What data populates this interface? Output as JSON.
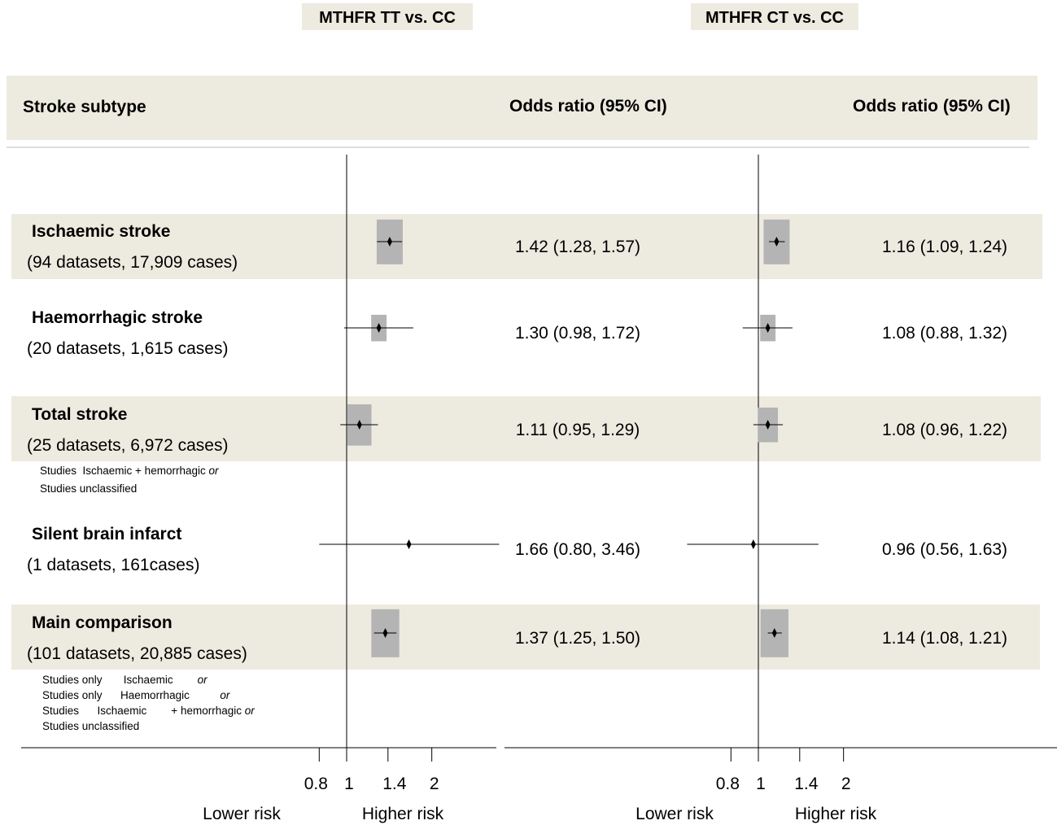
{
  "colors": {
    "band": "#edeae0",
    "box": "#b4b4b4",
    "line": "#000000"
  },
  "headers": {
    "panel_titles": [
      "MTHFR TT vs. CC",
      "MTHFR CT vs. CC"
    ],
    "subtype_label": "Stroke subtype",
    "or_label_left": "Odds ratio (95% CI)",
    "or_label_right": "Odds ratio (95% CI)"
  },
  "rows": [
    {
      "name": "Ischaemic stroke",
      "detail": "(94 datasets, 17,909 cases)",
      "shaded": true,
      "notes": []
    },
    {
      "name": "Haemorrhagic stroke",
      "detail": "(20 datasets, 1,615 cases)",
      "shaded": false,
      "notes": []
    },
    {
      "name": "Total stroke",
      "detail": "(25 datasets, 6,972 cases)",
      "shaded": true,
      "notes": [
        [
          {
            "t": "Studies  Ischaemic + hemorrhagic "
          },
          {
            "t": "or",
            "i": true
          }
        ],
        [
          {
            "t": "Studies unclassified"
          }
        ]
      ]
    },
    {
      "name": "Silent brain infarct",
      "detail": "(1 datasets, 161cases)",
      "shaded": false,
      "notes": []
    },
    {
      "name": "Main comparison",
      "detail": "(101 datasets, 20,885 cases)",
      "shaded": true,
      "notes": [
        [
          {
            "t": "Studies only       Ischaemic        "
          },
          {
            "t": "or",
            "i": true
          }
        ],
        [
          {
            "t": "Studies only      Haemorrhagic          "
          },
          {
            "t": "or",
            "i": true
          }
        ],
        [
          {
            "t": "Studies      Ischaemic        + hemorrhagic "
          },
          {
            "t": "or",
            "i": true
          }
        ],
        [
          {
            "t": "Studies unclassified"
          }
        ]
      ]
    }
  ],
  "chart_data": [
    {
      "type": "forest",
      "title": "MTHFR TT vs. CC",
      "x_scale": "log",
      "reference_line": 1,
      "xticks": [
        0.8,
        1,
        1.4,
        2
      ],
      "xtick_labels": [
        "0.8",
        "1",
        "1.4",
        "2"
      ],
      "xlim": [
        0.55,
        7
      ],
      "direction_labels": [
        "Lower risk",
        "Higher risk"
      ],
      "rows": [
        {
          "label": "Ischaemic stroke",
          "or": 1.42,
          "lo": 1.28,
          "hi": 1.57,
          "text": "1.42 (1.28, 1.57)",
          "weight": 1.0
        },
        {
          "label": "Haemorrhagic stroke",
          "or": 1.3,
          "lo": 0.98,
          "hi": 1.72,
          "text": "1.30 (0.98, 1.72)",
          "weight": 0.35
        },
        {
          "label": "Total stroke",
          "or": 1.11,
          "lo": 0.95,
          "hi": 1.29,
          "text": "1.11 (0.95, 1.29)",
          "weight": 0.85
        },
        {
          "label": "Silent brain infarct",
          "or": 1.66,
          "lo": 0.8,
          "hi": 3.46,
          "text": "1.66 (0.80, 3.46)",
          "weight": 0.0
        },
        {
          "label": "Main comparison",
          "or": 1.37,
          "lo": 1.25,
          "hi": 1.5,
          "text": "1.37 (1.25, 1.50)",
          "weight": 1.15
        }
      ]
    },
    {
      "type": "forest",
      "title": "MTHFR CT vs. CC",
      "x_scale": "log",
      "reference_line": 1,
      "xticks": [
        0.8,
        1,
        1.4,
        2
      ],
      "xtick_labels": [
        "0.8",
        "1",
        "1.4",
        "2"
      ],
      "xlim": [
        0.55,
        7
      ],
      "direction_labels": [
        "Lower risk",
        "Higher risk"
      ],
      "rows": [
        {
          "label": "Ischaemic stroke",
          "or": 1.16,
          "lo": 1.09,
          "hi": 1.24,
          "text": "1.16 (1.09, 1.24)",
          "weight": 1.0
        },
        {
          "label": "Haemorrhagic stroke",
          "or": 1.08,
          "lo": 0.88,
          "hi": 1.32,
          "text": "1.08 (0.88, 1.32)",
          "weight": 0.35
        },
        {
          "label": "Total stroke",
          "or": 1.08,
          "lo": 0.96,
          "hi": 1.22,
          "text": "1.08 (0.96, 1.22)",
          "weight": 0.6
        },
        {
          "label": "Silent brain infarct",
          "or": 0.96,
          "lo": 0.56,
          "hi": 1.63,
          "text": "0.96 (0.56, 1.63)",
          "weight": 0.0
        },
        {
          "label": "Main comparison",
          "or": 1.14,
          "lo": 1.08,
          "hi": 1.21,
          "text": "1.14 (1.08, 1.21)",
          "weight": 1.15
        }
      ]
    }
  ]
}
